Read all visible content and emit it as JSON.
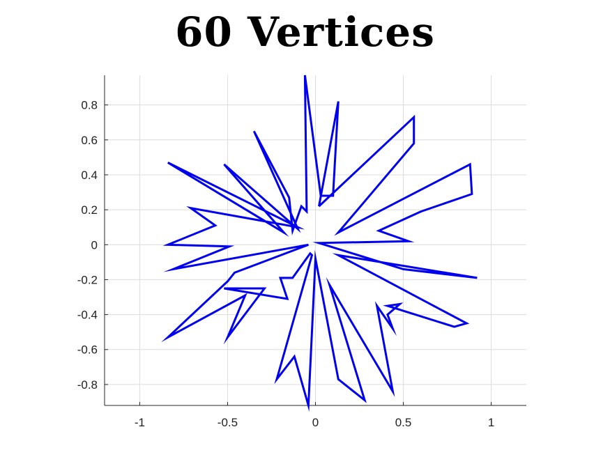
{
  "chart_data": {
    "type": "line",
    "title": "60 Vertices",
    "xlabel": "",
    "ylabel": "",
    "xlim": [
      -1.2,
      1.2
    ],
    "ylim": [
      -0.92,
      0.97
    ],
    "xticks": [
      -1,
      -0.5,
      0,
      0.5,
      1
    ],
    "xtick_labels": [
      "-1",
      "-0.5",
      "0",
      "0.5",
      "1"
    ],
    "yticks": [
      -0.8,
      -0.6,
      -0.4,
      -0.2,
      0,
      0.2,
      0.4,
      0.6,
      0.8
    ],
    "ytick_labels": [
      "-0.8",
      "-0.6",
      "-0.4",
      "-0.2",
      "0",
      "0.2",
      "0.4",
      "0.6",
      "0.8"
    ],
    "grid": true,
    "series": [
      {
        "color": "#0000ee",
        "x": [
          0.02,
          0.13,
          0.1,
          0.03,
          -0.06,
          -0.05,
          -0.08,
          -0.13,
          -0.15,
          -0.35,
          -0.1,
          -0.52,
          -0.18,
          -0.84,
          -0.1,
          -0.71,
          -0.57,
          -0.84,
          -0.49,
          -0.81,
          -0.04,
          -0.46,
          -0.5,
          -0.84,
          -0.4,
          -0.5,
          -0.29,
          -0.52,
          -0.16,
          -0.2,
          -0.13,
          -0.03,
          -0.02,
          -0.22,
          -0.12,
          -0.04,
          0.0,
          0.13,
          0.28,
          0.08,
          0.44,
          0.35,
          0.44,
          0.41,
          0.48,
          0.41,
          0.79,
          0.86,
          0.13,
          0.92,
          0.5,
          0.02,
          0.53,
          0.36,
          0.6,
          0.89,
          0.88,
          0.13,
          0.56,
          0.56,
          0.02
        ],
        "y": [
          0.22,
          0.82,
          0.28,
          0.28,
          0.97,
          0.19,
          0.22,
          0.08,
          0.27,
          0.65,
          0.09,
          0.46,
          0.07,
          0.47,
          0.1,
          0.21,
          0.11,
          0.0,
          -0.01,
          -0.14,
          -0.0,
          -0.16,
          -0.21,
          -0.53,
          -0.29,
          -0.53,
          -0.25,
          -0.25,
          -0.31,
          -0.19,
          -0.19,
          -0.05,
          -0.06,
          -0.77,
          -0.64,
          -0.92,
          -0.08,
          -0.77,
          -0.89,
          -0.23,
          -0.84,
          -0.35,
          -0.48,
          -0.4,
          -0.34,
          -0.35,
          -0.47,
          -0.45,
          -0.06,
          -0.19,
          -0.14,
          0.01,
          0.02,
          0.08,
          0.19,
          0.29,
          0.46,
          0.07,
          0.58,
          0.73,
          0.22
        ]
      }
    ]
  }
}
